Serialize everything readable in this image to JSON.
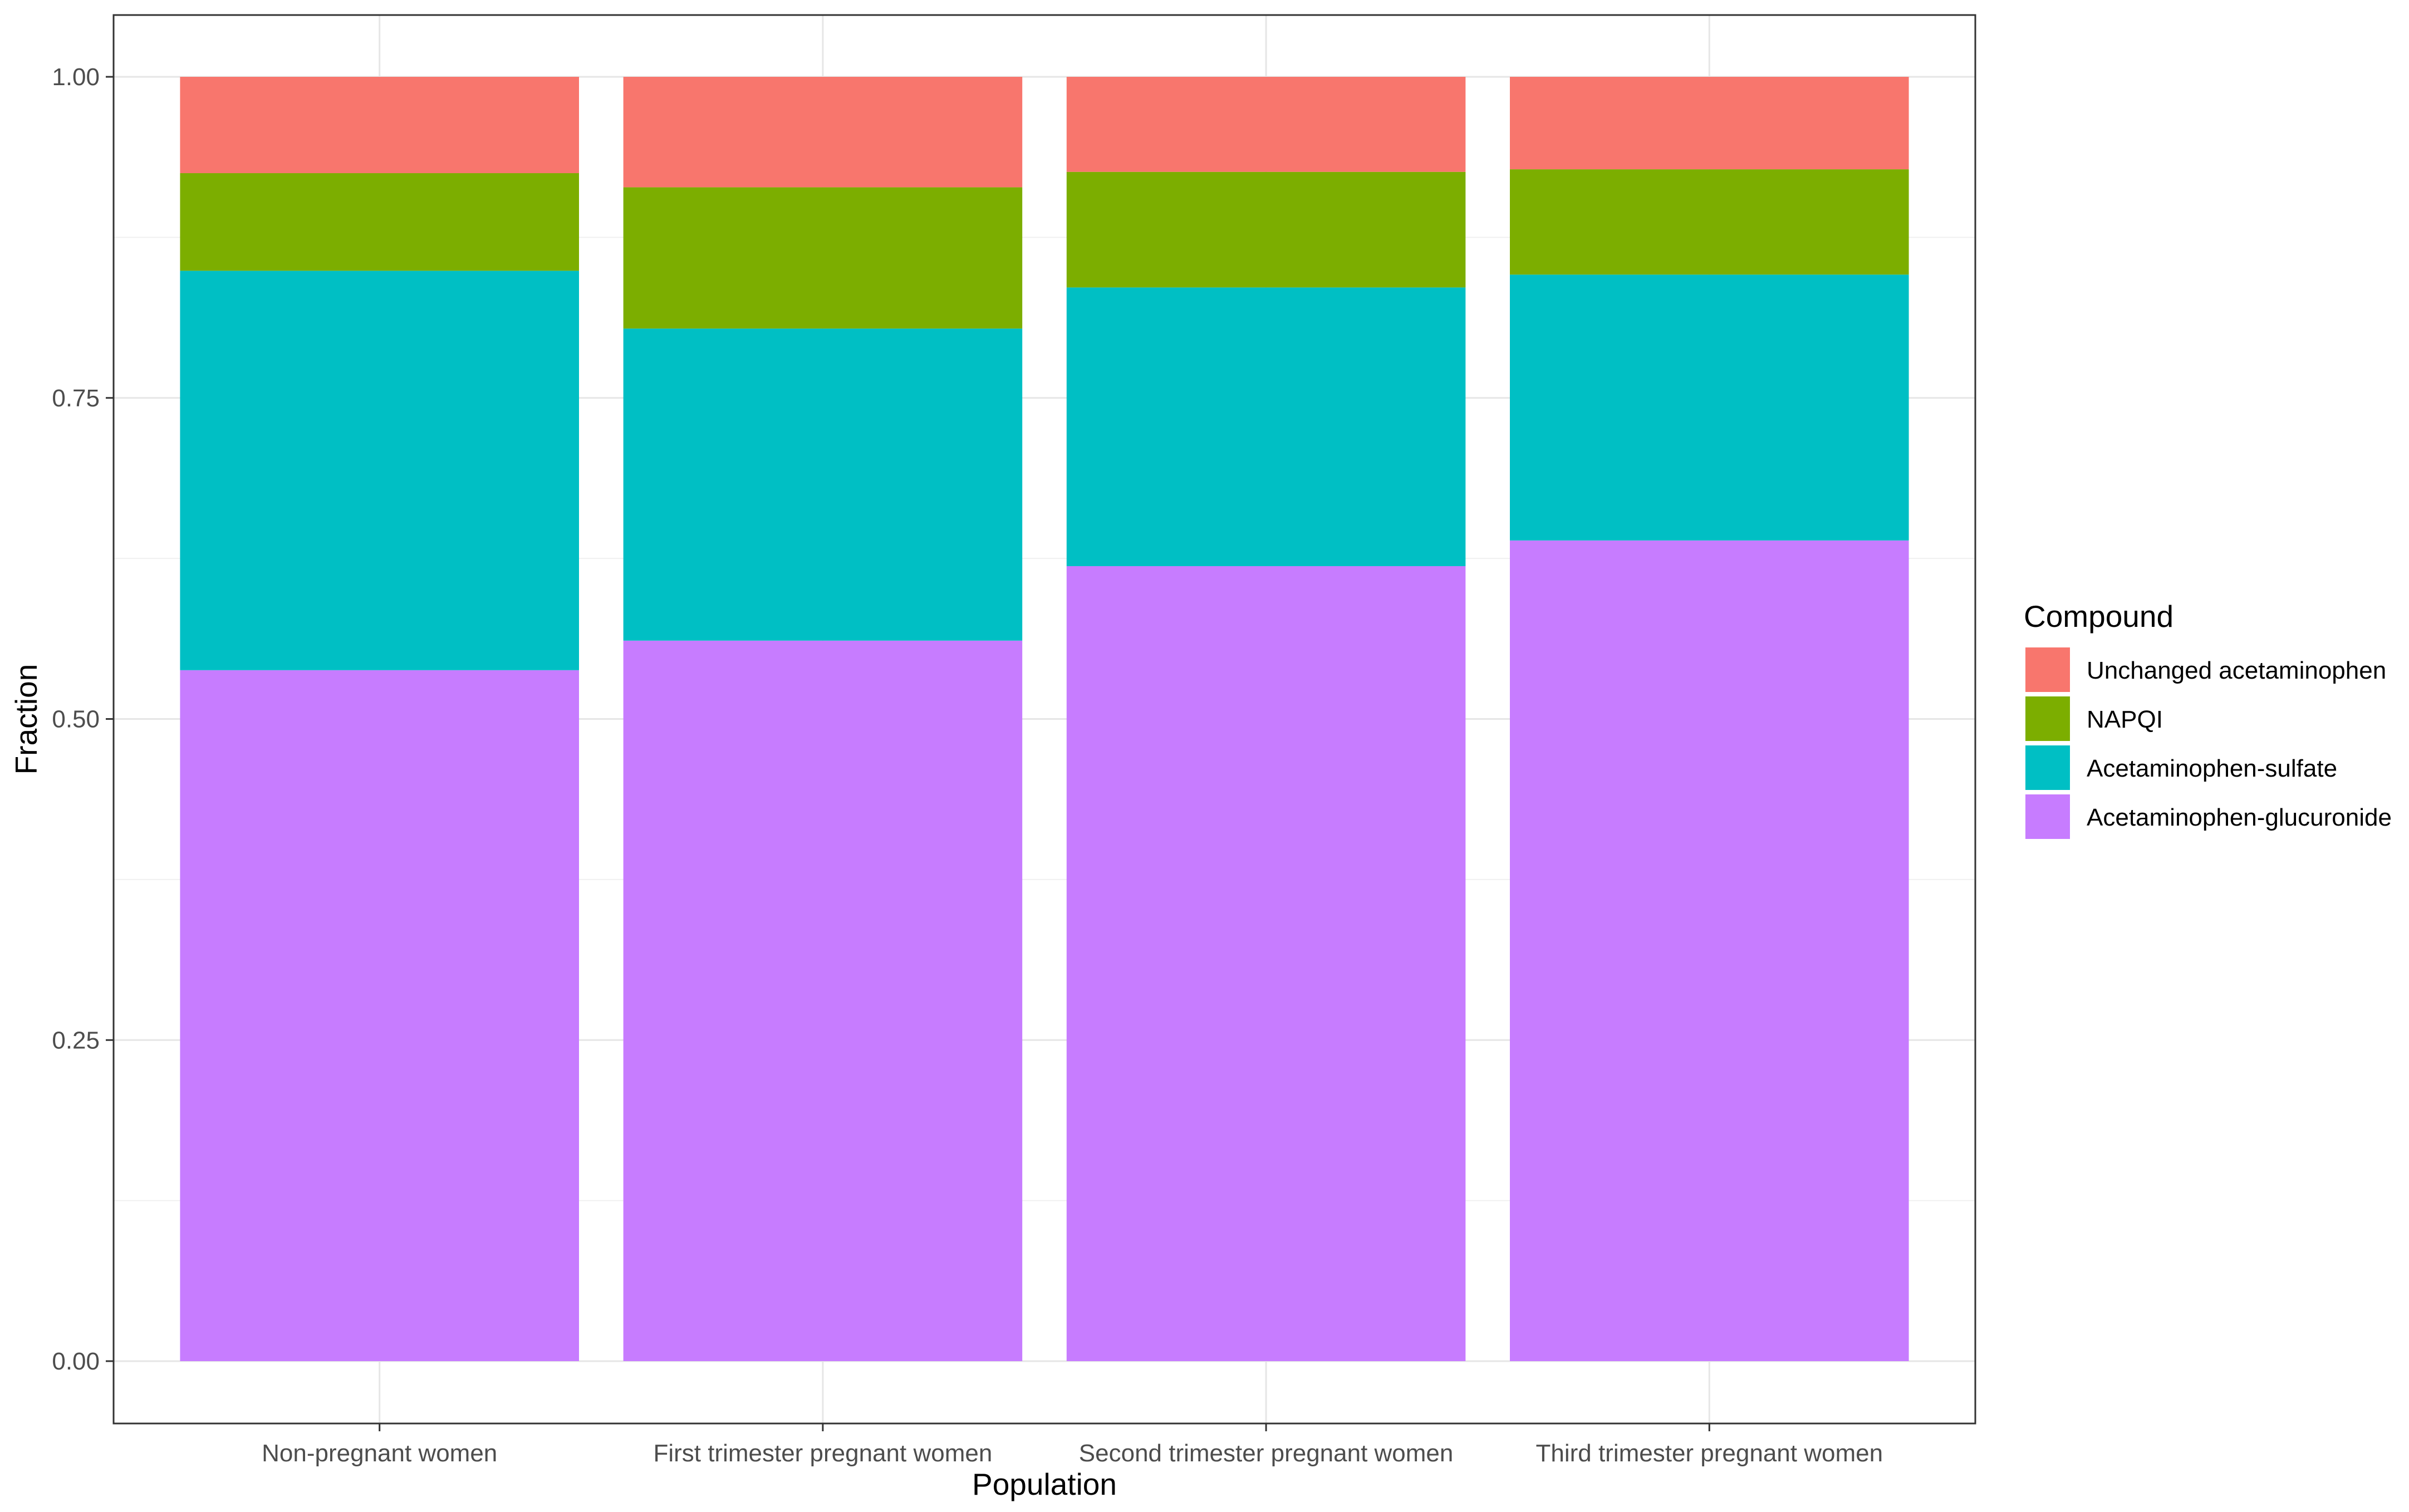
{
  "chart_data": {
    "type": "bar",
    "stacked": true,
    "title": "",
    "xlabel": "Population",
    "ylabel": "Fraction",
    "ylim": [
      0,
      1.05
    ],
    "yticks": [
      "0.00",
      "0.25",
      "0.50",
      "0.75",
      "1.00"
    ],
    "ytick_values": [
      0,
      0.25,
      0.5,
      0.75,
      1.0
    ],
    "grid": true,
    "legend_position": "right",
    "legend_title": "Compound",
    "categories": [
      "Non-pregnant women",
      "First trimester pregnant women",
      "Second trimester pregnant women",
      "Third trimester pregnant women"
    ],
    "series": [
      {
        "name": "Acetaminophen-glucuronide",
        "color": "#C77CFF",
        "values": [
          0.538,
          0.561,
          0.619,
          0.639
        ]
      },
      {
        "name": "Acetaminophen-sulfate",
        "color": "#00BFC4",
        "values": [
          0.311,
          0.243,
          0.217,
          0.207
        ]
      },
      {
        "name": "NAPQI",
        "color": "#7CAE00",
        "values": [
          0.076,
          0.11,
          0.09,
          0.082
        ]
      },
      {
        "name": "Unchanged acetaminophen",
        "color": "#F8766D",
        "values": [
          0.075,
          0.086,
          0.074,
          0.072
        ]
      }
    ],
    "legend_order": [
      "Unchanged acetaminophen",
      "NAPQI",
      "Acetaminophen-sulfate",
      "Acetaminophen-glucuronide"
    ]
  }
}
